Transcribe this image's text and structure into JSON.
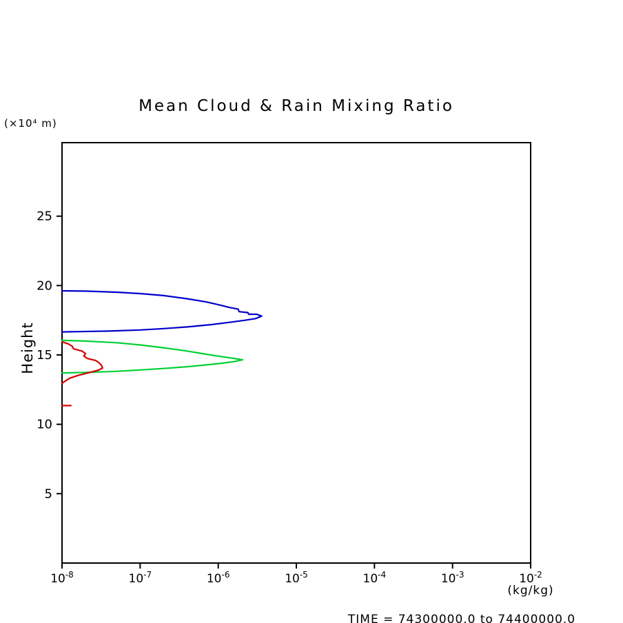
{
  "chart_data": {
    "type": "line",
    "title": "Mean Cloud & Rain Mixing Ratio",
    "ylabel": "Height",
    "y_unit_label": "(×10⁴ m)",
    "x_unit_label": "(kg/kg)",
    "footer_time_label": "TIME = 74300000.0 to 74400000.0",
    "x_scale": "log",
    "xlim": [
      1e-08,
      0.01
    ],
    "ylim": [
      0,
      30.3
    ],
    "grid": false,
    "legend": "none",
    "axis_color": "#000000",
    "x_ticks": [
      {
        "value": 1e-08,
        "base": "10",
        "exp": "-8"
      },
      {
        "value": 1e-07,
        "base": "10",
        "exp": "-7"
      },
      {
        "value": 1e-06,
        "base": "10",
        "exp": "-6"
      },
      {
        "value": 1e-05,
        "base": "10",
        "exp": "-5"
      },
      {
        "value": 0.0001,
        "base": "10",
        "exp": "-4"
      },
      {
        "value": 0.001,
        "base": "10",
        "exp": "-3"
      },
      {
        "value": 0.01,
        "base": "10",
        "exp": "-2"
      }
    ],
    "y_ticks": [
      {
        "value": 5,
        "label": "5"
      },
      {
        "value": 10,
        "label": "10"
      },
      {
        "value": 15,
        "label": "15"
      },
      {
        "value": 20,
        "label": "20"
      },
      {
        "value": 25,
        "label": "25"
      }
    ],
    "series": [
      {
        "name": "upper-profile-blue",
        "color": "#0000cc",
        "segments": [
          [
            [
              1e-08,
              19.62
            ],
            [
              2e-08,
              19.6
            ],
            [
              5e-08,
              19.52
            ],
            [
              1e-07,
              19.42
            ],
            [
              2e-07,
              19.28
            ],
            [
              4e-07,
              19.05
            ],
            [
              7e-07,
              18.82
            ],
            [
              1e-06,
              18.62
            ],
            [
              1.4e-06,
              18.42
            ],
            [
              1.8e-06,
              18.3
            ],
            [
              1.85e-06,
              18.12
            ],
            [
              2.4e-06,
              18.05
            ],
            [
              2.45e-06,
              17.93
            ],
            [
              3.1e-06,
              17.93
            ],
            [
              3.6e-06,
              17.8
            ],
            [
              3e-06,
              17.62
            ],
            [
              2.2e-06,
              17.5
            ],
            [
              1.4e-06,
              17.35
            ],
            [
              8e-07,
              17.18
            ],
            [
              4e-07,
              17.02
            ],
            [
              2e-07,
              16.9
            ],
            [
              1e-07,
              16.8
            ],
            [
              4e-08,
              16.72
            ],
            [
              1e-08,
              16.66
            ]
          ]
        ]
      },
      {
        "name": "middle-profile-green",
        "color": "#00d033",
        "segments": [
          [
            [
              1e-08,
              16.05
            ],
            [
              2e-08,
              16.0
            ],
            [
              5e-08,
              15.88
            ],
            [
              1e-07,
              15.72
            ],
            [
              2e-07,
              15.52
            ],
            [
              4e-07,
              15.28
            ],
            [
              7e-07,
              15.05
            ],
            [
              1.1e-06,
              14.88
            ],
            [
              1.6e-06,
              14.75
            ],
            [
              2.05e-06,
              14.65
            ],
            [
              1.6e-06,
              14.52
            ],
            [
              1.1e-06,
              14.4
            ],
            [
              7e-07,
              14.28
            ],
            [
              4e-07,
              14.15
            ],
            [
              2e-07,
              14.02
            ],
            [
              1e-07,
              13.92
            ],
            [
              5e-08,
              13.82
            ],
            [
              2e-08,
              13.74
            ],
            [
              1e-08,
              13.7
            ]
          ]
        ]
      },
      {
        "name": "lower-profile-red",
        "color": "#d40000",
        "segments": [
          [
            [
              1e-08,
              15.95
            ],
            [
              1.2e-08,
              15.8
            ],
            [
              1.35e-08,
              15.62
            ],
            [
              1.4e-08,
              15.45
            ],
            [
              1.8e-08,
              15.28
            ],
            [
              2e-08,
              15.1
            ],
            [
              1.9e-08,
              14.92
            ],
            [
              2.1e-08,
              14.75
            ],
            [
              2.7e-08,
              14.6
            ],
            [
              3e-08,
              14.42
            ],
            [
              3.2e-08,
              14.25
            ],
            [
              3.3e-08,
              14.05
            ],
            [
              2.9e-08,
              13.9
            ],
            [
              2.2e-08,
              13.72
            ],
            [
              1.6e-08,
              13.52
            ],
            [
              1.25e-08,
              13.32
            ],
            [
              1.1e-08,
              13.12
            ],
            [
              1e-08,
              12.95
            ]
          ],
          [
            [
              1e-08,
              11.35
            ],
            [
              1.3e-08,
              11.35
            ]
          ]
        ]
      }
    ]
  }
}
